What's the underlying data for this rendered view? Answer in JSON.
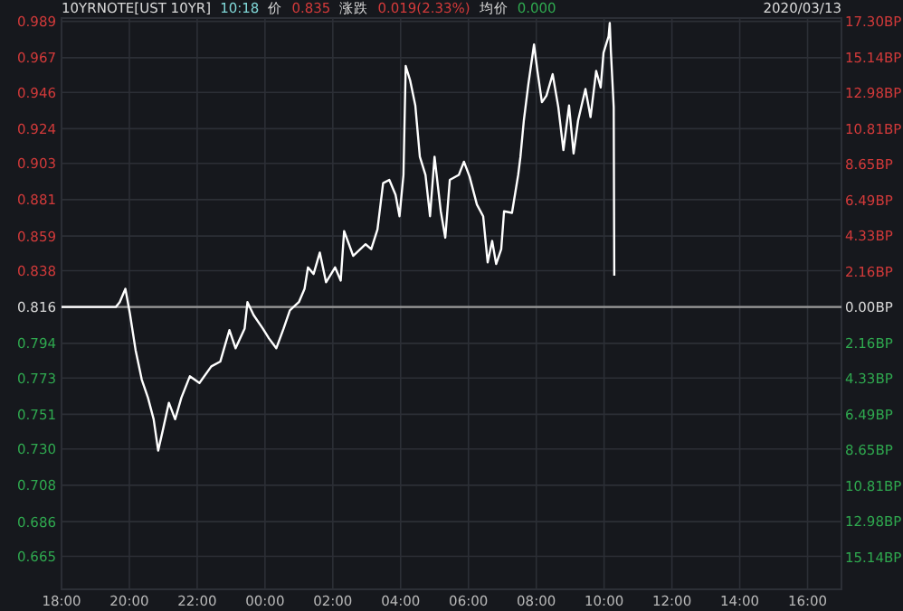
{
  "chart_data": {
    "type": "line",
    "title": "10YRNOTE[UST 10YR]",
    "annotations": [
      "10:18",
      "价",
      "0.835",
      "涨跌",
      "0.019(2.33%)",
      "均价",
      "0.000",
      "2020/03/13"
    ],
    "series": [
      {
        "color": "#ffffff",
        "x": [
          "2020-03-12T18:00",
          "2020-03-12T19:36",
          "2020-03-12T19:43",
          "2020-03-12T19:53",
          "2020-03-12T20:01",
          "2020-03-12T20:11",
          "2020-03-12T20:22",
          "2020-03-12T20:33",
          "2020-03-12T20:43",
          "2020-03-12T20:51",
          "2020-03-12T20:59",
          "2020-03-12T21:10",
          "2020-03-12T21:21",
          "2020-03-12T21:32",
          "2020-03-12T21:47",
          "2020-03-12T22:04",
          "2020-03-12T22:25",
          "2020-03-12T22:41",
          "2020-03-12T22:57",
          "2020-03-12T23:08",
          "2020-03-12T23:24",
          "2020-03-12T23:29",
          "2020-03-12T23:40",
          "2020-03-12T23:56",
          "2020-03-13T00:07",
          "2020-03-13T00:20",
          "2020-03-13T00:33",
          "2020-03-13T00:44",
          "2020-03-13T01:00",
          "2020-03-13T01:10",
          "2020-03-13T01:16",
          "2020-03-13T01:26",
          "2020-03-13T01:37",
          "2020-03-13T01:48",
          "2020-03-13T02:04",
          "2020-03-13T02:14",
          "2020-03-13T02:20",
          "2020-03-13T02:36",
          "2020-03-13T02:58",
          "2020-03-13T03:08",
          "2020-03-13T03:19",
          "2020-03-13T03:29",
          "2020-03-13T03:40",
          "2020-03-13T03:51",
          "2020-03-13T03:58",
          "2020-03-13T04:05",
          "2020-03-13T04:09",
          "2020-03-13T04:17",
          "2020-03-13T04:26",
          "2020-03-13T04:34",
          "2020-03-13T04:44",
          "2020-03-13T04:52",
          "2020-03-13T05:00",
          "2020-03-13T05:11",
          "2020-03-13T05:19",
          "2020-03-13T05:27",
          "2020-03-13T05:43",
          "2020-03-13T05:52",
          "2020-03-13T06:02",
          "2020-03-13T06:15",
          "2020-03-13T06:26",
          "2020-03-13T06:34",
          "2020-03-13T06:42",
          "2020-03-13T06:49",
          "2020-03-13T06:58",
          "2020-03-13T07:03",
          "2020-03-13T07:17",
          "2020-03-13T07:28",
          "2020-03-13T07:32",
          "2020-03-13T07:38",
          "2020-03-13T07:46",
          "2020-03-13T07:56",
          "2020-03-13T08:02",
          "2020-03-13T08:10",
          "2020-03-13T08:18",
          "2020-03-13T08:29",
          "2020-03-13T08:39",
          "2020-03-13T08:48",
          "2020-03-13T08:58",
          "2020-03-13T09:06",
          "2020-03-13T09:14",
          "2020-03-13T09:27",
          "2020-03-13T09:36",
          "2020-03-13T09:46",
          "2020-03-13T09:54",
          "2020-03-13T09:59",
          "2020-03-13T10:08",
          "2020-03-13T10:10",
          "2020-03-13T10:12",
          "2020-03-13T10:17",
          "2020-03-13T10:18"
        ],
        "values": [
          0.816,
          0.816,
          0.819,
          0.827,
          0.812,
          0.79,
          0.772,
          0.761,
          0.748,
          0.729,
          0.741,
          0.758,
          0.748,
          0.761,
          0.774,
          0.77,
          0.78,
          0.783,
          0.802,
          0.791,
          0.803,
          0.819,
          0.811,
          0.803,
          0.797,
          0.791,
          0.803,
          0.814,
          0.819,
          0.827,
          0.84,
          0.836,
          0.849,
          0.831,
          0.84,
          0.832,
          0.862,
          0.847,
          0.854,
          0.851,
          0.863,
          0.891,
          0.893,
          0.884,
          0.871,
          0.896,
          0.962,
          0.953,
          0.938,
          0.907,
          0.896,
          0.871,
          0.907,
          0.874,
          0.858,
          0.893,
          0.896,
          0.904,
          0.895,
          0.878,
          0.871,
          0.843,
          0.856,
          0.842,
          0.851,
          0.874,
          0.873,
          0.896,
          0.907,
          0.929,
          0.951,
          0.975,
          0.959,
          0.94,
          0.944,
          0.957,
          0.937,
          0.911,
          0.938,
          0.909,
          0.929,
          0.948,
          0.931,
          0.959,
          0.949,
          0.97,
          0.98,
          0.988,
          0.971,
          0.937,
          0.835
        ]
      }
    ],
    "xlim": [
      "2020-03-12T18:00",
      "2020-03-13T17:00"
    ],
    "xticks": [
      {
        "value": "2020-03-12T18:00",
        "label": "18:00"
      },
      {
        "value": "2020-03-12T20:00",
        "label": "20:00"
      },
      {
        "value": "2020-03-12T22:00",
        "label": "22:00"
      },
      {
        "value": "2020-03-13T00:00",
        "label": "00:00"
      },
      {
        "value": "2020-03-13T02:00",
        "label": "02:00"
      },
      {
        "value": "2020-03-13T04:00",
        "label": "04:00"
      },
      {
        "value": "2020-03-13T06:00",
        "label": "06:00"
      },
      {
        "value": "2020-03-13T08:00",
        "label": "08:00"
      },
      {
        "value": "2020-03-13T10:00",
        "label": "10:00"
      },
      {
        "value": "2020-03-13T12:00",
        "label": "12:00"
      },
      {
        "value": "2020-03-13T14:00",
        "label": "14:00"
      },
      {
        "value": "2020-03-13T16:00",
        "label": "16:00"
      }
    ],
    "ylim": [
      0.645,
      0.991
    ],
    "yticks": [
      0.989,
      0.967,
      0.946,
      0.924,
      0.903,
      0.881,
      0.859,
      0.838,
      0.816,
      0.794,
      0.773,
      0.751,
      {
        "value": 0.73,
        "label": "0.730"
      },
      0.708,
      0.686,
      0.665
    ],
    "y2lim": [
      -17.1,
      17.5
    ],
    "y2ticks": [
      {
        "value": 17.3,
        "label": "17.30BP"
      },
      {
        "value": 15.14,
        "label": "15.14BP"
      },
      {
        "value": 12.98,
        "label": "12.98BP"
      },
      {
        "value": 10.81,
        "label": "10.81BP"
      },
      {
        "value": 8.65,
        "label": "8.65BP"
      },
      {
        "value": 6.49,
        "label": "6.49BP"
      },
      {
        "value": 4.33,
        "label": "4.33BP"
      },
      {
        "value": 2.16,
        "label": "2.16BP"
      },
      {
        "value": 0,
        "label": "0.00BP"
      },
      {
        "value": -2.16,
        "label": "2.16BP"
      },
      {
        "value": -4.33,
        "label": "4.33BP"
      },
      {
        "value": -6.49,
        "label": "6.49BP"
      },
      {
        "value": -8.65,
        "label": "8.65BP"
      },
      {
        "value": -10.81,
        "label": "10.81BP"
      },
      {
        "value": -12.98,
        "label": "12.98BP"
      },
      {
        "value": -15.14,
        "label": "15.14BP"
      }
    ],
    "ref_lines": [
      {
        "axis": "y",
        "value": 0.816,
        "color": "#9a9a9a"
      }
    ],
    "grid": true,
    "marker": "none",
    "line_style": "solid"
  }
}
